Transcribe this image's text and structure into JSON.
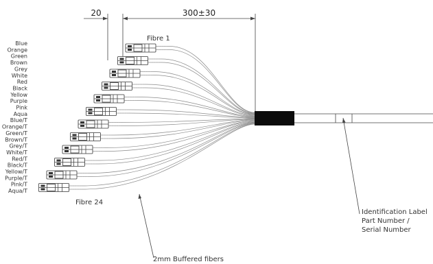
{
  "dimensions": {
    "connector_length": "20",
    "breakout_length": "300±30"
  },
  "labels": {
    "fibre_first": "Fibre 1",
    "fibre_last": "Fibre 24",
    "buffered": "2mm Buffered fibers",
    "ident_line1": "Identification Label",
    "ident_line2": "Part Number /",
    "ident_line3": "Serial Number"
  },
  "fiber_colors": [
    "Blue",
    "Orange",
    "Green",
    "Brown",
    "Grey",
    "White",
    "Red",
    "Black",
    "Yellow",
    "Purple",
    "Pink",
    "Aqua",
    "Blue/T",
    "Orange/T",
    "Green/T",
    "Brown/T",
    "Grey/T",
    "White/T",
    "Red/T",
    "Black/T",
    "Yellow/T",
    "Purple/T",
    "Pink/T",
    "Aqua/T"
  ]
}
